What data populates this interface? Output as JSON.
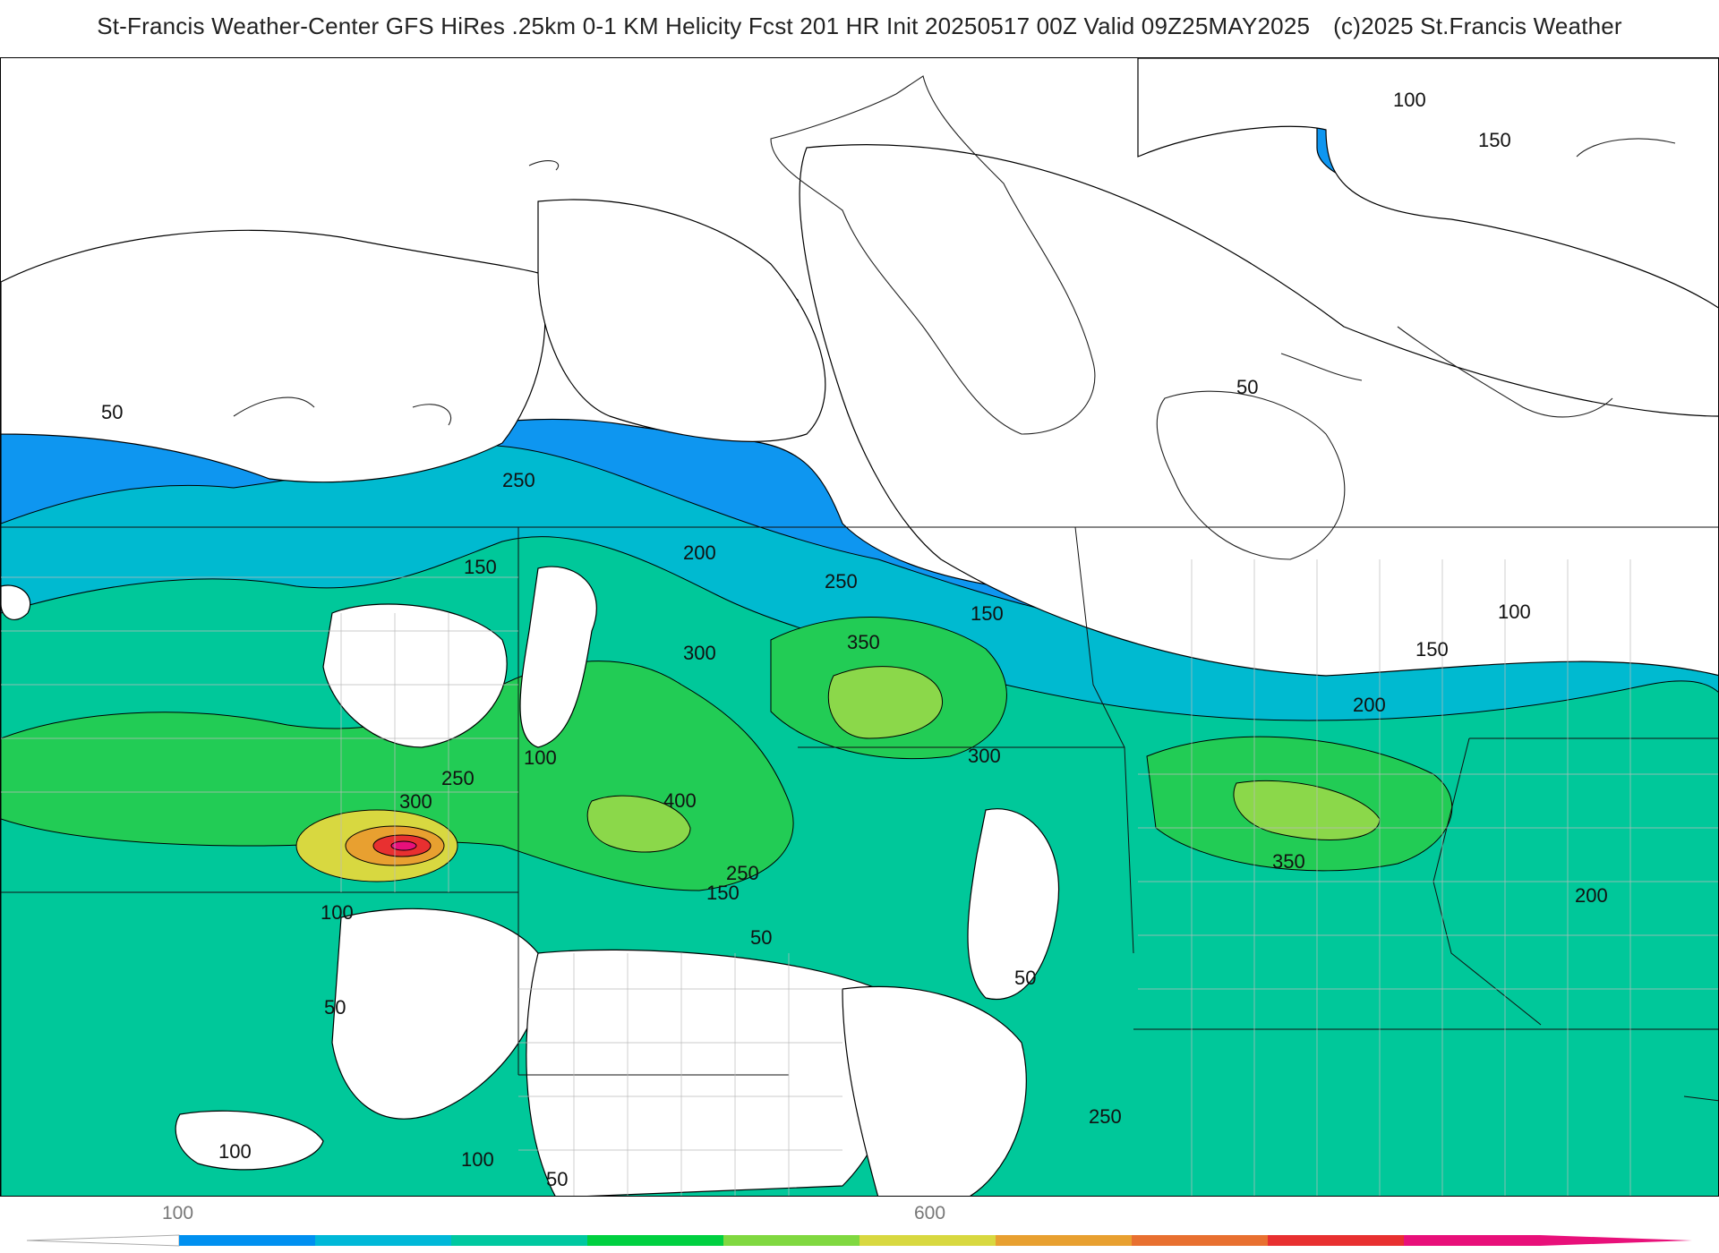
{
  "title": {
    "main": "St-Francis Weather-Center GFS HiRes .25km 0-1 KM Helicity Fcst 201 HR Init 20250517 00Z  Valid 09Z25MAY2025",
    "copyright": "(c)2025 St.Francis Weather"
  },
  "map": {
    "contour_labels": [
      {
        "text": "50"
      },
      {
        "text": "100"
      },
      {
        "text": "150"
      },
      {
        "text": "250"
      },
      {
        "text": "150"
      },
      {
        "text": "200"
      },
      {
        "text": "250"
      },
      {
        "text": "300"
      },
      {
        "text": "350"
      },
      {
        "text": "150"
      },
      {
        "text": "100"
      },
      {
        "text": "150"
      },
      {
        "text": "200"
      },
      {
        "text": "50"
      },
      {
        "text": "300"
      },
      {
        "text": "100"
      },
      {
        "text": "250"
      },
      {
        "text": "300"
      },
      {
        "text": "400"
      },
      {
        "text": "350"
      },
      {
        "text": "200"
      },
      {
        "text": "100"
      },
      {
        "text": "250"
      },
      {
        "text": "150"
      },
      {
        "text": "50"
      },
      {
        "text": "50"
      },
      {
        "text": "50"
      },
      {
        "text": "250"
      },
      {
        "text": "100"
      },
      {
        "text": "100"
      },
      {
        "text": "50"
      }
    ]
  },
  "colorbar": {
    "ticks": [
      "100",
      "600"
    ],
    "colors": [
      "#0090f0",
      "#00b8d8",
      "#00c8a0",
      "#00d040",
      "#80d840",
      "#d8d840",
      "#e8a030",
      "#e87030",
      "#e83030",
      "#e8107a"
    ]
  }
}
